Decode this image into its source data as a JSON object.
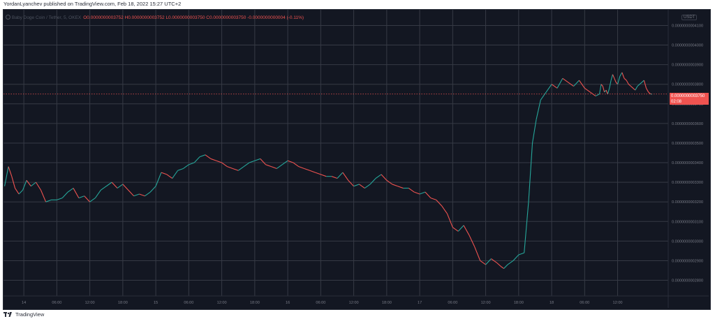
{
  "header": {
    "attribution": "YordanLyanchev published on TradingView.com, Feb 18, 2022 15:27 UTC+2"
  },
  "legend": {
    "symbol": "Baby Doge Coin / Tether, 5, OKEX",
    "ohlc": "O0.0000000003752  H0.0000000003752  L0.0000000003750  C0.0000000003750  -0.0000000000004 (-0.11%)"
  },
  "currency_badge": "USDT",
  "price_tag": {
    "price": "0.0000000003750",
    "countdown": "02:08",
    "color": "#ef5350"
  },
  "footer": {
    "brand": "TradingView",
    "logo_icon": "tradingview-logo-icon"
  },
  "colors": {
    "background": "#131722",
    "grid": "#363a45",
    "up": "#26a69a",
    "down": "#ef5350",
    "axis_text": "#787b86"
  },
  "chart_data": {
    "type": "line",
    "title": "Baby Doge Coin / Tether, 5, OKEX",
    "xlabel": "",
    "ylabel": "",
    "grid": true,
    "y_axis_position": "right",
    "ylim": [
      2.72e-10,
      4.18e-10
    ],
    "y_ticks": [
      "0.0000000004100",
      "0.0000000004000",
      "0.0000000003900",
      "0.0000000003800",
      "0.0000000003700",
      "0.0000000003600",
      "0.0000000003500",
      "0.0000000003400",
      "0.0000000003300",
      "0.0000000003200",
      "0.0000000003100",
      "0.0000000003000",
      "0.0000000002900",
      "0.0000000002800"
    ],
    "y_tick_values": [
      4.1e-10,
      4e-10,
      3.9e-10,
      3.8e-10,
      3.7e-10,
      3.6e-10,
      3.5e-10,
      3.4e-10,
      3.3e-10,
      3.2e-10,
      3.1e-10,
      3e-10,
      2.9e-10,
      2.8e-10
    ],
    "x_ticks": [
      "14",
      "06:00",
      "12:00",
      "18:00",
      "15",
      "06:00",
      "12:00",
      "18:00",
      "16",
      "06:00",
      "12:00",
      "18:00",
      "17",
      "06:00",
      "12:00",
      "18:00",
      "18",
      "06:00",
      "12:00"
    ],
    "x_tick_hours": [
      24,
      30,
      36,
      42,
      48,
      54,
      60,
      66,
      72,
      78,
      84,
      90,
      96,
      102,
      108,
      114,
      120,
      126,
      132
    ],
    "xlim_hours": [
      20.3,
      141.2
    ],
    "series": [
      {
        "x_hours": [
          20.5,
          21.2,
          21.8,
          22.4,
          23.1,
          23.8,
          24.5,
          25.3,
          26.2,
          27.1,
          28.0,
          29.0,
          30.0,
          31.0,
          32.0,
          33.0,
          34.0,
          35.0,
          36.0,
          37.0,
          38.0,
          39.0,
          40.0,
          41.0,
          42.0,
          43.0,
          44.0,
          45.0,
          46.0,
          47.0,
          48.0,
          49.0,
          50.0,
          51.0,
          52.0,
          53.0,
          54.0,
          55.0,
          56.0,
          57.0,
          58.0,
          59.0,
          60.0,
          61.0,
          62.0,
          63.0,
          64.0,
          65.0,
          66.0,
          67.0,
          68.0,
          69.0,
          70.0,
          71.0,
          72.0,
          73.0,
          74.0,
          75.0,
          76.0,
          77.0,
          78.0,
          79.0,
          80.0,
          81.0,
          82.0,
          83.0,
          84.0,
          85.0,
          86.0,
          87.0,
          88.0,
          89.0,
          90.0,
          91.0,
          92.0,
          93.0,
          94.0,
          95.0,
          96.0,
          97.0,
          98.0,
          99.0,
          100.0,
          101.0,
          102.0,
          103.0,
          104.0,
          105.0,
          106.0,
          107.0,
          108.0,
          109.0,
          110.0,
          110.8,
          111.3,
          112.0,
          112.5,
          113.0,
          114.0,
          115.0,
          115.8,
          116.5,
          117.2,
          118.0,
          119.0,
          120.0,
          121.0,
          122.0,
          123.0,
          124.0,
          125.0,
          126.0,
          127.0,
          128.0,
          128.7,
          129.0,
          129.3,
          129.6,
          129.9,
          130.2,
          130.5,
          130.8,
          131.1,
          131.4,
          131.7,
          132.0,
          132.4,
          132.8,
          133.2,
          133.6,
          134.0,
          134.4,
          134.8,
          135.2,
          135.6,
          136.0,
          136.4,
          136.8,
          137.2,
          137.6,
          138.0,
          138.3
        ],
        "values": [
          3.28e-10,
          3.38e-10,
          3.33e-10,
          3.27e-10,
          3.24e-10,
          3.26e-10,
          3.31e-10,
          3.28e-10,
          3.3e-10,
          3.26e-10,
          3.2e-10,
          3.21e-10,
          3.21e-10,
          3.22e-10,
          3.25e-10,
          3.27e-10,
          3.22e-10,
          3.23e-10,
          3.2e-10,
          3.22e-10,
          3.26e-10,
          3.28e-10,
          3.3e-10,
          3.27e-10,
          3.29e-10,
          3.26e-10,
          3.23e-10,
          3.24e-10,
          3.23e-10,
          3.25e-10,
          3.28e-10,
          3.35e-10,
          3.34e-10,
          3.32e-10,
          3.36e-10,
          3.37e-10,
          3.39e-10,
          3.4e-10,
          3.43e-10,
          3.44e-10,
          3.42e-10,
          3.41e-10,
          3.4e-10,
          3.38e-10,
          3.37e-10,
          3.36e-10,
          3.38e-10,
          3.4e-10,
          3.41e-10,
          3.42e-10,
          3.39e-10,
          3.38e-10,
          3.37e-10,
          3.39e-10,
          3.41e-10,
          3.4e-10,
          3.38e-10,
          3.37e-10,
          3.36e-10,
          3.35e-10,
          3.34e-10,
          3.33e-10,
          3.33e-10,
          3.32e-10,
          3.35e-10,
          3.31e-10,
          3.28e-10,
          3.29e-10,
          3.27e-10,
          3.29e-10,
          3.32e-10,
          3.34e-10,
          3.31e-10,
          3.29e-10,
          3.28e-10,
          3.27e-10,
          3.27e-10,
          3.25e-10,
          3.24e-10,
          3.25e-10,
          3.22e-10,
          3.21e-10,
          3.18e-10,
          3.14e-10,
          3.07e-10,
          3.05e-10,
          3.08e-10,
          3.03e-10,
          2.97e-10,
          2.9e-10,
          2.88e-10,
          2.91e-10,
          2.89e-10,
          2.87e-10,
          2.86e-10,
          2.88e-10,
          2.89e-10,
          2.9e-10,
          2.93e-10,
          2.94e-10,
          3.2e-10,
          3.5e-10,
          3.62e-10,
          3.72e-10,
          3.76e-10,
          3.8e-10,
          3.78e-10,
          3.83e-10,
          3.81e-10,
          3.79e-10,
          3.82e-10,
          3.78e-10,
          3.76e-10,
          3.74e-10,
          3.75e-10,
          3.8e-10,
          3.79e-10,
          3.76e-10,
          3.77e-10,
          3.75e-10,
          3.78e-10,
          3.82e-10,
          3.85e-10,
          3.83e-10,
          3.81e-10,
          3.8e-10,
          3.84e-10,
          3.86e-10,
          3.83e-10,
          3.82e-10,
          3.8e-10,
          3.79e-10,
          3.78e-10,
          3.77e-10,
          3.79e-10,
          3.8e-10,
          3.81e-10,
          3.82e-10,
          3.78e-10,
          3.76e-10,
          3.75e-10,
          3.75e-10
        ]
      }
    ]
  }
}
